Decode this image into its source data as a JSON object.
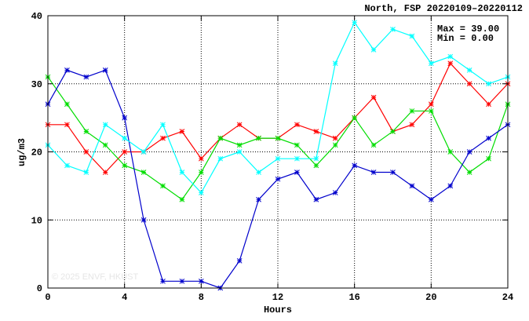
{
  "title": "North, FSP 20220109–20220112",
  "stats": {
    "max": "Max = 39.00",
    "min": "Min =  0.00"
  },
  "watermark": "© 2025 ENVF, HKUST",
  "chart_data": {
    "type": "line",
    "title": "North, FSP 20220109–20220112",
    "xlabel": "Hours",
    "ylabel": "ug/m3",
    "xlim": [
      0,
      24
    ],
    "ylim": [
      0,
      40
    ],
    "xticks": [
      0,
      4,
      8,
      12,
      16,
      20,
      24
    ],
    "yticks": [
      0,
      10,
      20,
      30,
      40
    ],
    "grid": true,
    "x": [
      0,
      1,
      2,
      3,
      4,
      5,
      6,
      7,
      8,
      9,
      10,
      11,
      12,
      13,
      14,
      15,
      16,
      17,
      18,
      19,
      20,
      21,
      22,
      23,
      24
    ],
    "series": [
      {
        "color": "#ff0000",
        "values": [
          24,
          24,
          20,
          17,
          20,
          20,
          22,
          23,
          19,
          22,
          24,
          22,
          22,
          24,
          23,
          22,
          25,
          28,
          23,
          24,
          27,
          33,
          30,
          27,
          30
        ]
      },
      {
        "color": "#00dd00",
        "values": [
          31,
          27,
          23,
          21,
          18,
          17,
          15,
          13,
          17,
          22,
          21,
          22,
          22,
          21,
          18,
          21,
          25,
          21,
          23,
          26,
          26,
          20,
          17,
          19,
          27
        ]
      },
      {
        "color": "#0000cc",
        "values": [
          27,
          32,
          31,
          32,
          25,
          10,
          1,
          1,
          1,
          0,
          4,
          13,
          16,
          17,
          13,
          14,
          18,
          17,
          17,
          15,
          13,
          15,
          20,
          22,
          24
        ]
      },
      {
        "color": "#00ffff",
        "values": [
          21,
          18,
          17,
          24,
          22,
          20,
          24,
          17,
          14,
          19,
          20,
          17,
          19,
          19,
          19,
          33,
          39,
          35,
          38,
          37,
          33,
          34,
          32,
          30,
          31
        ]
      }
    ]
  }
}
